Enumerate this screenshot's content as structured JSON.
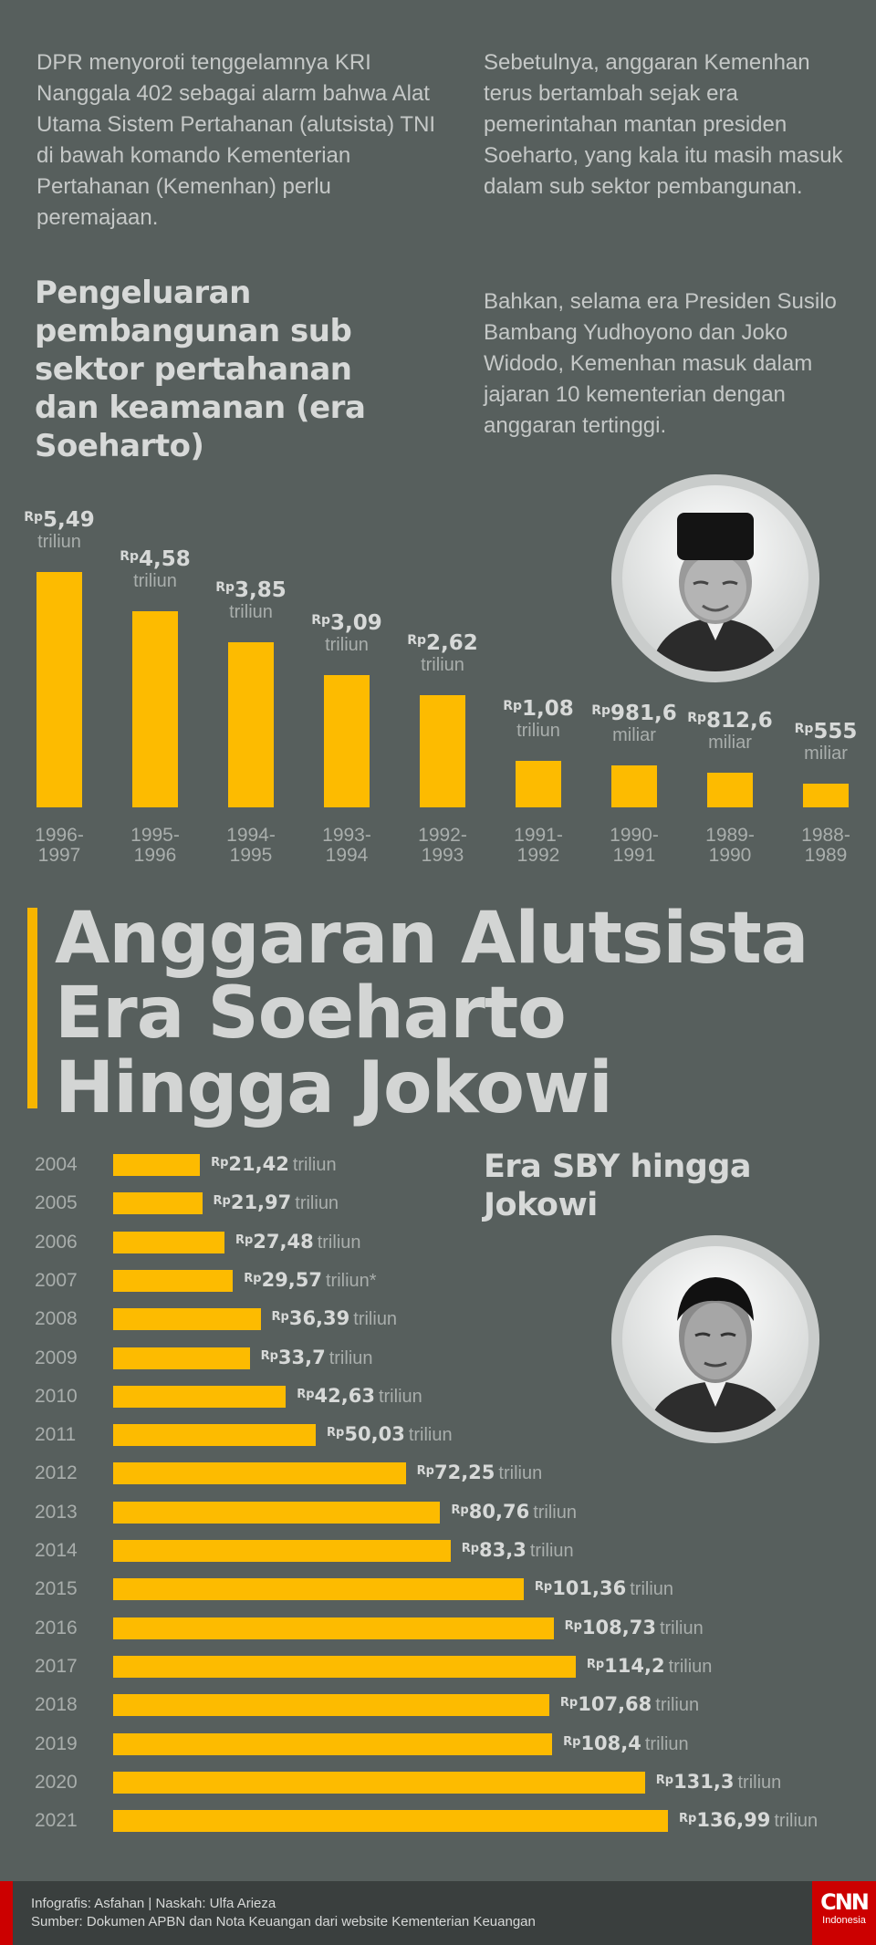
{
  "intro": {
    "left": "DPR menyoroti tenggelamnya KRI Nanggala 402 sebagai alarm bahwa Alat Utama Sistem Pertahanan (alutsista) TNI di bawah komando Kementerian Pertahanan (Kemenhan) perlu peremajaan.",
    "right1": "Sebetulnya, anggaran Kemenhan terus bertambah sejak era pemerintahan mantan presiden Soeharto, yang kala itu masih masuk dalam sub sektor pembangunan.",
    "right2": "Bahkan, selama era Presiden Susilo Bambang Yudhoyono dan Joko Widodo, Kemenhan masuk dalam jajaran 10 kementerian dengan anggaran tertinggi."
  },
  "main_title": "Anggaran Alutsista Era Soeharto Hingga Jokowi",
  "colors": {
    "background": "#575f5d",
    "bar": "#fdbb00",
    "footer": "#3a3f3e",
    "brand": "#cc0000"
  },
  "currency_prefix": "Rp",
  "chart_data": [
    {
      "type": "bar",
      "title": "Pengeluaran pembangunan sub sektor pertahanan dan keamanan (era Soeharto)",
      "categories": [
        "1996-1997",
        "1995-1996",
        "1994-1995",
        "1993-1994",
        "1992-1993",
        "1991-1992",
        "1990-1991",
        "1989-1990",
        "1988-1989"
      ],
      "labels": [
        "5,49",
        "4,58",
        "3,85",
        "3,09",
        "2,62",
        "1,08",
        "981,6",
        "812,6",
        "555"
      ],
      "units": [
        "triliun",
        "triliun",
        "triliun",
        "triliun",
        "triliun",
        "triliun",
        "miliar",
        "miliar",
        "miliar"
      ],
      "values_triliun": [
        5.49,
        4.58,
        3.85,
        3.09,
        2.62,
        1.08,
        0.9816,
        0.8126,
        0.555
      ],
      "ylim": [
        0,
        5.49
      ],
      "grid": false
    },
    {
      "type": "bar",
      "orientation": "horizontal",
      "title": "Era SBY hingga Jokowi",
      "categories": [
        "2004",
        "2005",
        "2006",
        "2007",
        "2008",
        "2009",
        "2010",
        "2011",
        "2012",
        "2013",
        "2014",
        "2015",
        "2016",
        "2017",
        "2018",
        "2019",
        "2020",
        "2021"
      ],
      "labels": [
        "21,42",
        "21,97",
        "27,48",
        "29,57",
        "36,39",
        "33,7",
        "42,63",
        "50,03",
        "72,25",
        "80,76",
        "83,3",
        "101,36",
        "108,73",
        "114,2",
        "107,68",
        "108,4",
        "131,3",
        "136,99"
      ],
      "units": [
        "triliun",
        "triliun",
        "triliun",
        "triliun*",
        "triliun",
        "triliun",
        "triliun",
        "triliun",
        "triliun",
        "triliun",
        "triliun",
        "triliun",
        "triliun",
        "triliun",
        "triliun",
        "triliun",
        "triliun",
        "triliun"
      ],
      "values": [
        21.42,
        21.97,
        27.48,
        29.57,
        36.39,
        33.7,
        42.63,
        50.03,
        72.25,
        80.76,
        83.3,
        101.36,
        108.73,
        114.2,
        107.68,
        108.4,
        131.3,
        136.99
      ],
      "xlim": [
        0,
        136.99
      ],
      "grid": false
    }
  ],
  "footer": {
    "credit": "Infografis: Asfahan | Naskah: Ulfa Arieza",
    "source": "Sumber: Dokumen APBN dan Nota Keuangan dari website Kementerian Keuangan",
    "logo_text": "CNN",
    "logo_sub": "Indonesia"
  }
}
